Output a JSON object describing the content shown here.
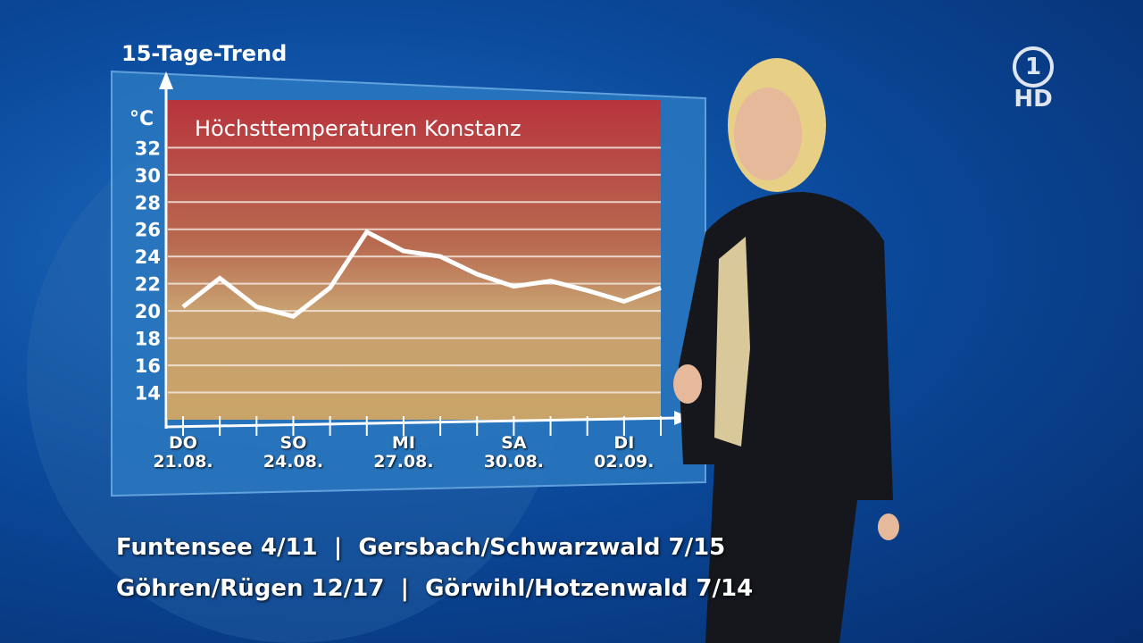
{
  "header": "15-Tage-Trend",
  "logo": {
    "number": "1",
    "label": "HD"
  },
  "chart_data": {
    "type": "line",
    "title": "Höchsttemperaturen Konstanz",
    "y_label": "°C",
    "categories": [
      "DO\n21.08.",
      null,
      null,
      "SO\n24.08.",
      null,
      null,
      "MI\n27.08.",
      null,
      null,
      "SA\n30.08.",
      null,
      null,
      "DI\n02.09.",
      null
    ],
    "values": [
      20.3,
      22.4,
      20.3,
      19.6,
      21.7,
      25.8,
      24.4,
      24.0,
      22.7,
      21.8,
      22.2,
      21.5,
      20.7,
      21.7
    ],
    "color": "#ffffff",
    "ylim": [
      12,
      35.5
    ],
    "yticks": [
      14,
      16,
      18,
      20,
      22,
      24,
      26,
      28,
      30,
      32
    ],
    "grid": true
  },
  "ticker": [
    "Funtensee 4/11  |  Gersbach/Schwarzwald 7/15",
    "Göhren/Rügen 12/17  |  Görwihl/Hotzenwald 7/14"
  ]
}
